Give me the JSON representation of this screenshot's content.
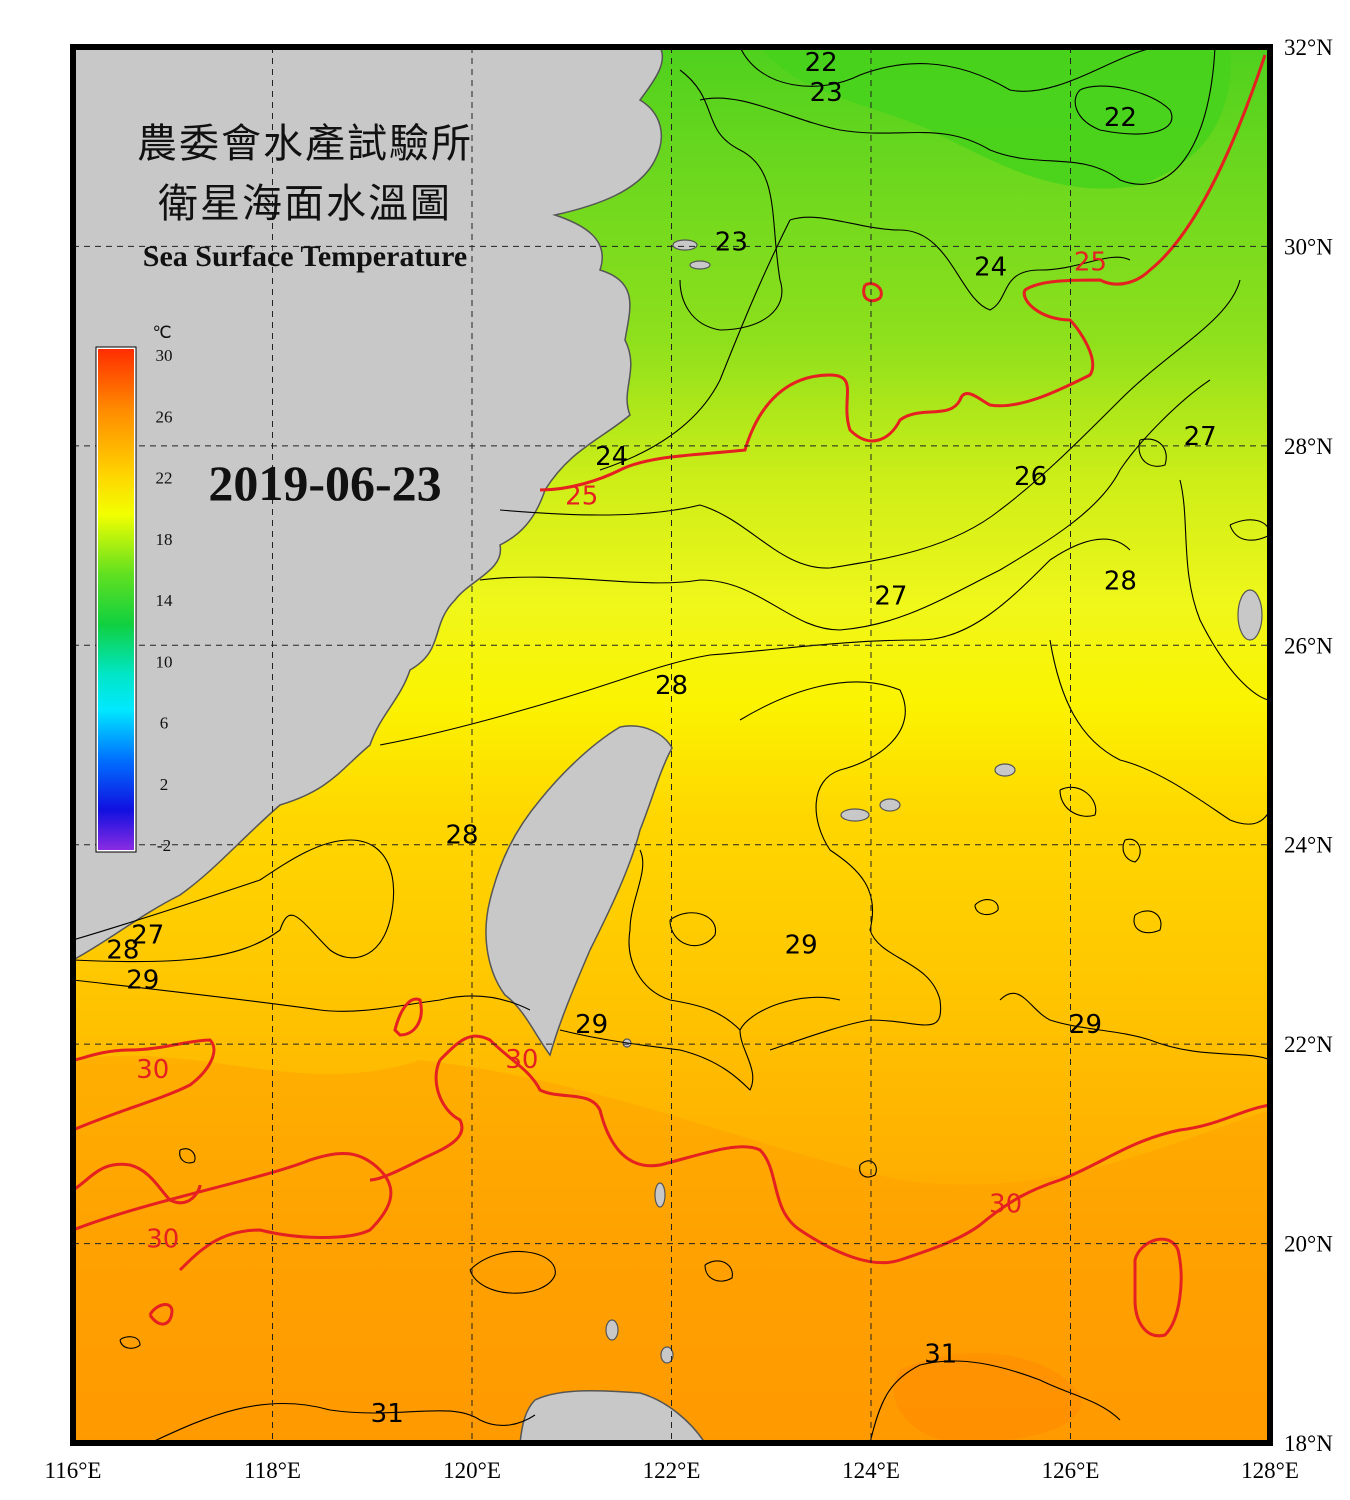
{
  "title": {
    "line1": "農委會水產試驗所",
    "line2": "衛星海面水溫圖",
    "english": "Sea Surface Temperature"
  },
  "date": "2019-06-23",
  "colorbar": {
    "unit": "℃",
    "ticks": [
      "30",
      "26",
      "22",
      "18",
      "14",
      "10",
      "6",
      "2",
      "-2"
    ],
    "range": [
      -2,
      30
    ]
  },
  "axes": {
    "lon_labels": [
      "116°E",
      "118°E",
      "120°E",
      "122°E",
      "124°E",
      "126°E",
      "128°E"
    ],
    "lat_labels": [
      "32°N",
      "30°N",
      "28°N",
      "26°N",
      "24°N",
      "22°N",
      "20°N",
      "18°N"
    ],
    "lon_range": [
      116,
      128
    ],
    "lat_range": [
      18,
      32
    ]
  },
  "contour_labels": [
    {
      "text": "22",
      "lon": 123.5,
      "lat": 31.85,
      "color": "#000000"
    },
    {
      "text": "23",
      "lon": 123.55,
      "lat": 31.55,
      "color": "#000000"
    },
    {
      "text": "22",
      "lon": 126.5,
      "lat": 31.3,
      "color": "#000000"
    },
    {
      "text": "23",
      "lon": 122.6,
      "lat": 30.05,
      "color": "#000000"
    },
    {
      "text": "24",
      "lon": 125.2,
      "lat": 29.8,
      "color": "#000000"
    },
    {
      "text": "25",
      "lon": 126.2,
      "lat": 29.85,
      "color": "#e52020"
    },
    {
      "text": "24",
      "lon": 121.4,
      "lat": 27.9,
      "color": "#000000"
    },
    {
      "text": "25",
      "lon": 121.1,
      "lat": 27.5,
      "color": "#e52020"
    },
    {
      "text": "26",
      "lon": 125.6,
      "lat": 27.7,
      "color": "#000000"
    },
    {
      "text": "27",
      "lon": 127.3,
      "lat": 28.1,
      "color": "#000000"
    },
    {
      "text": "27",
      "lon": 124.2,
      "lat": 26.5,
      "color": "#000000"
    },
    {
      "text": "28",
      "lon": 126.5,
      "lat": 26.65,
      "color": "#000000"
    },
    {
      "text": "28",
      "lon": 122.0,
      "lat": 25.6,
      "color": "#000000"
    },
    {
      "text": "28",
      "lon": 119.9,
      "lat": 24.1,
      "color": "#000000"
    },
    {
      "text": "27",
      "lon": 116.75,
      "lat": 23.1,
      "color": "#000000"
    },
    {
      "text": "28",
      "lon": 116.5,
      "lat": 22.95,
      "color": "#000000"
    },
    {
      "text": "29",
      "lon": 116.7,
      "lat": 22.65,
      "color": "#000000"
    },
    {
      "text": "29",
      "lon": 123.3,
      "lat": 23.0,
      "color": "#000000"
    },
    {
      "text": "29",
      "lon": 121.2,
      "lat": 22.2,
      "color": "#000000"
    },
    {
      "text": "29",
      "lon": 126.15,
      "lat": 22.2,
      "color": "#000000"
    },
    {
      "text": "30",
      "lon": 116.8,
      "lat": 21.75,
      "color": "#e52020"
    },
    {
      "text": "30",
      "lon": 120.5,
      "lat": 21.85,
      "color": "#e52020"
    },
    {
      "text": "30",
      "lon": 125.35,
      "lat": 20.4,
      "color": "#e52020"
    },
    {
      "text": "30",
      "lon": 116.9,
      "lat": 20.05,
      "color": "#e52020"
    },
    {
      "text": "31",
      "lon": 124.7,
      "lat": 18.9,
      "color": "#000000"
    },
    {
      "text": "31",
      "lon": 119.15,
      "lat": 18.3,
      "color": "#000000"
    }
  ]
}
